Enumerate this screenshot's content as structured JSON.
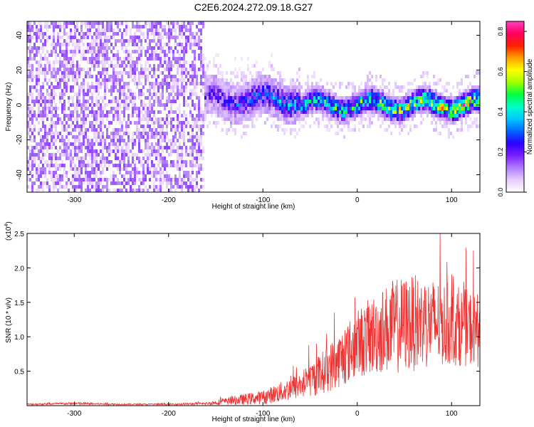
{
  "figure": {
    "title": "C2E6.2024.272.09.18.G27"
  },
  "chart_data": [
    {
      "type": "heatmap",
      "title": "C2E6.2024.272.09.18.G27",
      "xlabel": "Height of straight line (km)",
      "ylabel": "Frequency (Hz)",
      "xlim": [
        -350,
        130
      ],
      "ylim": [
        -50,
        48
      ],
      "xticks": [
        -300,
        -200,
        -100,
        0,
        100
      ],
      "yticks": [
        -40,
        -20,
        0,
        20,
        40
      ],
      "colorbar": {
        "label": "Normalized spectral amplitude",
        "range": [
          0.0,
          0.85
        ],
        "ticks": [
          0.0,
          0.2,
          0.4,
          0.6,
          0.8
        ],
        "colors": [
          "#ffffff",
          "#e6ccff",
          "#b07cff",
          "#7a1fff",
          "#2b00ff",
          "#0066ff",
          "#00c8ff",
          "#00ffc8",
          "#00ff40",
          "#a0ff00",
          "#ffff00",
          "#ffa000",
          "#ff2000",
          "#ff0060",
          "#ff40c0"
        ]
      },
      "regions": [
        {
          "x_range": [
            -350,
            -163
          ],
          "description": "noise across all frequencies",
          "dominant_amplitude": 0.08
        },
        {
          "x_range": [
            -163,
            130
          ],
          "description": "signal band near 0 Hz",
          "band_center_hz": 0,
          "band_halfwidth_hz": 8,
          "peak_amplitude": 0.8
        }
      ]
    },
    {
      "type": "line",
      "xlabel": "Height of straight line (km)",
      "ylabel": "SNR (10 * v/v)",
      "y_multiplier": "(x10",
      "y_multiplier_exp": "4",
      "xlim": [
        -350,
        130
      ],
      "ylim": [
        0,
        2.5
      ],
      "xticks": [
        -300,
        -200,
        -100,
        0,
        100
      ],
      "yticks": [
        0.5,
        1.0,
        1.5,
        2.0,
        2.5
      ],
      "series": [
        {
          "color": "#ee3333",
          "x": [
            -350,
            -300,
            -250,
            -200,
            -160,
            -140,
            -120,
            -100,
            -80,
            -60,
            -40,
            -20,
            0,
            20,
            40,
            60,
            80,
            100,
            120,
            130
          ],
          "y": [
            0.02,
            0.03,
            0.02,
            0.02,
            0.03,
            0.06,
            0.09,
            0.12,
            0.2,
            0.3,
            0.45,
            0.65,
            0.9,
            1.05,
            1.15,
            1.2,
            1.2,
            1.18,
            1.12,
            1.1
          ],
          "spread": [
            0.01,
            0.02,
            0.01,
            0.01,
            0.02,
            0.05,
            0.08,
            0.1,
            0.15,
            0.2,
            0.3,
            0.4,
            0.5,
            0.6,
            0.7,
            0.7,
            0.65,
            0.6,
            0.55,
            0.55
          ]
        }
      ]
    }
  ]
}
